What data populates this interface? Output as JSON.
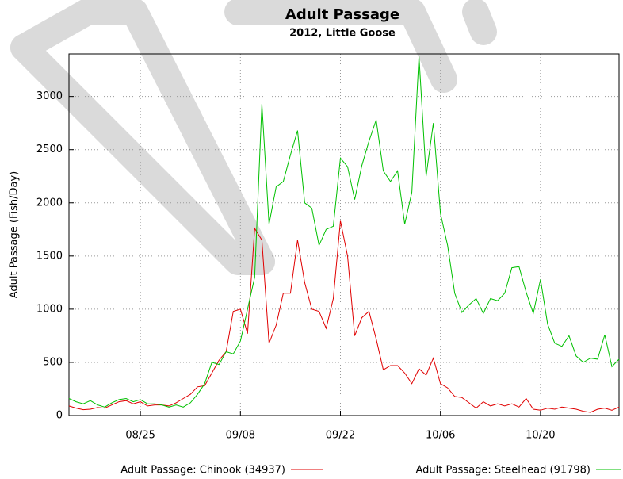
{
  "chart_data": {
    "type": "line",
    "title": "Adult Passage",
    "subtitle": "2012, Little Goose",
    "y_label": "Adult Passage (Fish/Day)",
    "categories": [
      null,
      null,
      null,
      null,
      null,
      null,
      null,
      null,
      null,
      null,
      "08/25",
      null,
      null,
      null,
      null,
      null,
      null,
      null,
      null,
      null,
      null,
      null,
      null,
      null,
      "09/08",
      null,
      null,
      null,
      null,
      null,
      null,
      null,
      null,
      null,
      null,
      null,
      null,
      null,
      "09/22",
      null,
      null,
      null,
      null,
      null,
      null,
      null,
      null,
      null,
      null,
      null,
      null,
      null,
      "10/06",
      null,
      null,
      null,
      null,
      null,
      null,
      null,
      null,
      null,
      null,
      null,
      null,
      null,
      "10/20",
      null,
      null,
      null,
      null,
      null,
      null,
      null,
      null,
      null,
      null,
      null
    ],
    "series": [
      {
        "name": "Adult Passage: Chinook (34937)",
        "color": "#e00000",
        "values": [
          90,
          70,
          55,
          60,
          75,
          70,
          100,
          130,
          140,
          110,
          130,
          90,
          100,
          100,
          90,
          120,
          160,
          200,
          270,
          280,
          400,
          520,
          600,
          980,
          1000,
          770,
          1760,
          1650,
          680,
          850,
          1150,
          1150,
          1650,
          1250,
          1000,
          980,
          820,
          1100,
          1830,
          1500,
          750,
          920,
          980,
          720,
          430,
          470,
          470,
          400,
          300,
          440,
          380,
          540,
          300,
          260,
          180,
          170,
          120,
          70,
          130,
          90,
          110,
          90,
          110,
          80,
          160,
          60,
          50,
          70,
          60,
          80,
          70,
          60,
          40,
          30,
          60,
          70,
          50,
          80
        ]
      },
      {
        "name": "Adult Passage: Steelhead (91798)",
        "color": "#00c000",
        "values": [
          160,
          130,
          110,
          140,
          100,
          80,
          120,
          150,
          160,
          130,
          150,
          110,
          110,
          100,
          80,
          100,
          80,
          120,
          200,
          300,
          500,
          480,
          600,
          580,
          700,
          1000,
          1300,
          2930,
          1800,
          2150,
          2200,
          2450,
          2680,
          2000,
          1950,
          1600,
          1750,
          1780,
          2420,
          2340,
          2030,
          2350,
          2580,
          2780,
          2300,
          2200,
          2300,
          1800,
          2100,
          3380,
          2250,
          2750,
          1900,
          1600,
          1150,
          970,
          1040,
          1100,
          960,
          1100,
          1080,
          1150,
          1390,
          1400,
          1160,
          960,
          1280,
          860,
          680,
          650,
          750,
          560,
          500,
          540,
          530,
          760,
          460,
          530
        ]
      }
    ],
    "ylim": [
      0,
      3400
    ],
    "yticks": [
      0,
      500,
      1000,
      1500,
      2000,
      2500,
      3000
    ],
    "grid": true
  }
}
